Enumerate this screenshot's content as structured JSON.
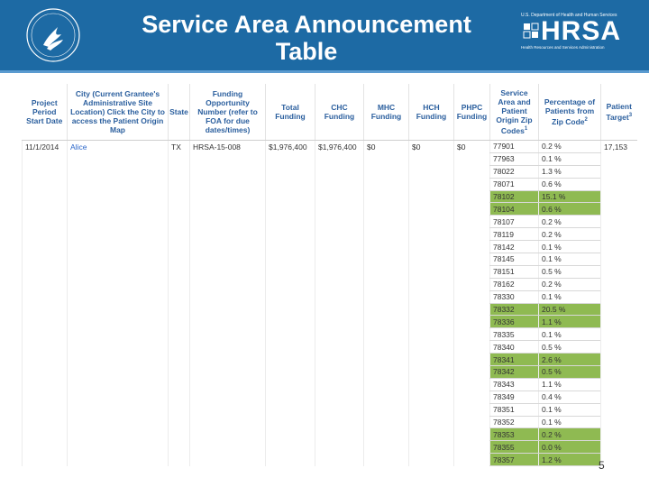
{
  "header": {
    "title_lines": [
      "Service Area Announcement",
      "Table"
    ],
    "logo_dept": "U.S. Department of Health and Human Services",
    "logo_name": "HRSA",
    "logo_sub": "Health Resources and Services Administration"
  },
  "table": {
    "columns": [
      {
        "text": "Project Period Start Date"
      },
      {
        "text": "City (Current Grantee's Administrative Site Location) Click the City to access the Patient Origin Map"
      },
      {
        "text": "State"
      },
      {
        "text": "Funding Opportunity Number (refer to FOA for due dates/times)"
      },
      {
        "text": "Total Funding"
      },
      {
        "text": "CHC Funding"
      },
      {
        "text": "MHC Funding"
      },
      {
        "text": "HCH Funding"
      },
      {
        "text": "PHPC Funding"
      },
      {
        "text": "Service Area and Patient Origin Zip Codes",
        "sup": "1"
      },
      {
        "text": "Percentage of Patients from Zip Code",
        "sup": "2"
      },
      {
        "text": "Patient Target",
        "sup": "3"
      }
    ],
    "grant": {
      "start": "11/1/2014",
      "city": "Alice",
      "state": "TX",
      "foa": "HRSA-15-008",
      "total": "$1,976,400",
      "chc": "$1,976,400",
      "mhc": "$0",
      "hch": "$0",
      "phpc": "$0",
      "target": "17,153"
    },
    "zip_rows": [
      {
        "zip": "77901",
        "pct": "0.2 %",
        "highlight": false
      },
      {
        "zip": "77963",
        "pct": "0.1 %",
        "highlight": false
      },
      {
        "zip": "78022",
        "pct": "1.3 %",
        "highlight": false
      },
      {
        "zip": "78071",
        "pct": "0.6 %",
        "highlight": false
      },
      {
        "zip": "78102",
        "pct": "15.1 %",
        "highlight": true
      },
      {
        "zip": "78104",
        "pct": "0.6 %",
        "highlight": true
      },
      {
        "zip": "78107",
        "pct": "0.2 %",
        "highlight": false
      },
      {
        "zip": "78119",
        "pct": "0.2 %",
        "highlight": false
      },
      {
        "zip": "78142",
        "pct": "0.1 %",
        "highlight": false
      },
      {
        "zip": "78145",
        "pct": "0.1 %",
        "highlight": false
      },
      {
        "zip": "78151",
        "pct": "0.5 %",
        "highlight": false
      },
      {
        "zip": "78162",
        "pct": "0.2 %",
        "highlight": false
      },
      {
        "zip": "78330",
        "pct": "0.1 %",
        "highlight": false
      },
      {
        "zip": "78332",
        "pct": "20.5 %",
        "highlight": true
      },
      {
        "zip": "78336",
        "pct": "1.1 %",
        "highlight": true
      },
      {
        "zip": "78335",
        "pct": "0.1 %",
        "highlight": false
      },
      {
        "zip": "78340",
        "pct": "0.5 %",
        "highlight": false
      },
      {
        "zip": "78341",
        "pct": "2.6 %",
        "highlight": true
      },
      {
        "zip": "78342",
        "pct": "0.5 %",
        "highlight": true
      },
      {
        "zip": "78343",
        "pct": "1.1 %",
        "highlight": false
      },
      {
        "zip": "78349",
        "pct": "0.4 %",
        "highlight": false
      },
      {
        "zip": "78351",
        "pct": "0.1 %",
        "highlight": false
      },
      {
        "zip": "78352",
        "pct": "0.1 %",
        "highlight": false
      },
      {
        "zip": "78353",
        "pct": "0.2 %",
        "highlight": true
      },
      {
        "zip": "78355",
        "pct": "0.0 %",
        "highlight": true
      },
      {
        "zip": "78357",
        "pct": "1.2 %",
        "highlight": true
      }
    ]
  },
  "page_number": "5"
}
